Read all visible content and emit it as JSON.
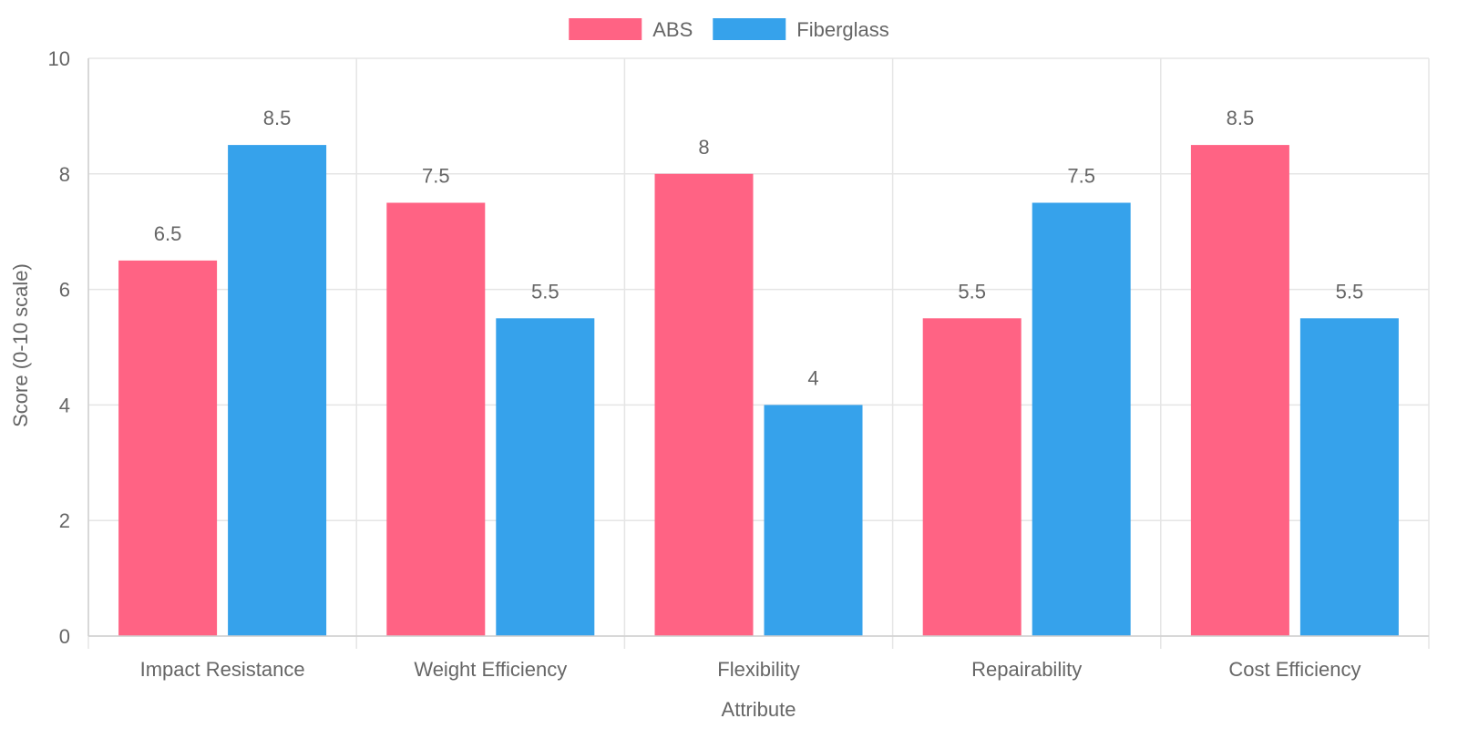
{
  "chart_data": {
    "type": "bar",
    "categories": [
      "Impact Resistance",
      "Weight Efficiency",
      "Flexibility",
      "Repairability",
      "Cost Efficiency"
    ],
    "series": [
      {
        "name": "ABS",
        "color": "#ff6384",
        "values": [
          6.5,
          7.5,
          8,
          5.5,
          8.5
        ]
      },
      {
        "name": "Fiberglass",
        "color": "#36a2eb",
        "values": [
          8.5,
          5.5,
          4,
          7.5,
          5.5
        ]
      }
    ],
    "xlabel": "Attribute",
    "ylabel": "Score (0-10 scale)",
    "ylim": [
      0,
      10
    ],
    "yticks": [
      0,
      2,
      4,
      6,
      8,
      10
    ],
    "grid": true,
    "legend_position": "top-center",
    "data_labels": true
  }
}
